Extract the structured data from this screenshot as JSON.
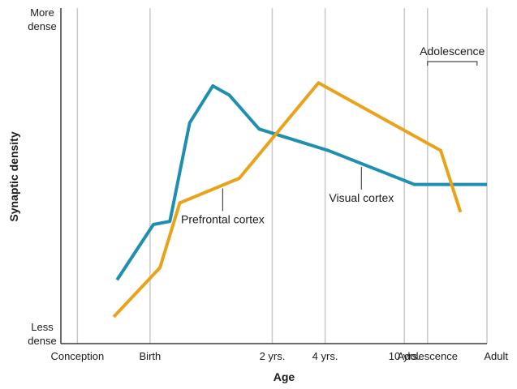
{
  "chart_data": {
    "type": "line",
    "title": "",
    "xlabel": "Age",
    "ylabel": "Synaptic density",
    "y_top_label": [
      "More",
      "dense"
    ],
    "y_bottom_label": [
      "Less",
      "dense"
    ],
    "ylim": [
      0,
      100
    ],
    "grid": true,
    "legend": "none",
    "categories": [
      "Conception",
      "Birth",
      "2 yrs.",
      "4 yrs.",
      "10 yrs.",
      "Adolescence",
      "Adult"
    ],
    "category_positions": [
      0,
      22,
      59,
      75,
      99,
      106,
      124
    ],
    "x_range": [
      -5,
      124
    ],
    "series": [
      {
        "name": "Visual cortex",
        "color": "#1f8fb0",
        "x": [
          12,
          23,
          28,
          34,
          41,
          46,
          55,
          76,
          102,
          124
        ],
        "y": [
          17,
          35,
          36,
          68,
          80,
          77,
          66,
          59,
          48,
          48
        ],
        "label_anchor_x": 86
      },
      {
        "name": "Prefrontal cortex",
        "color": "#e8a31a",
        "x": [
          11,
          25,
          31,
          49,
          73,
          110,
          116
        ],
        "y": [
          5,
          21,
          42,
          50,
          81,
          59,
          39
        ],
        "label_anchor_x": 44
      }
    ],
    "annotations": [
      {
        "text": "Adolescence",
        "x_start": 106,
        "x_end": 121
      }
    ]
  }
}
